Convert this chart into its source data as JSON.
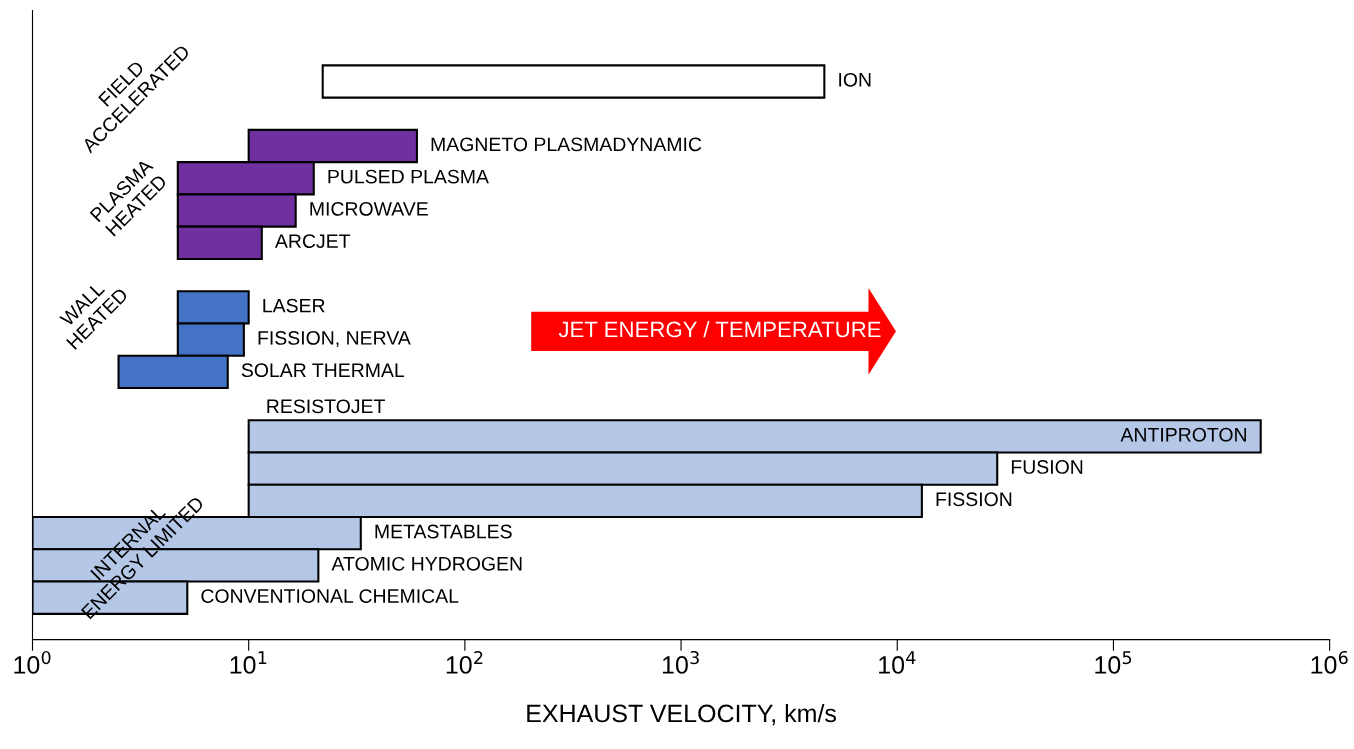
{
  "chart_data": {
    "type": "bar",
    "orientation": "horizontal",
    "log": "x",
    "grid": false,
    "tick_labels": "x",
    "xlabel": "EXHAUST VELOCITY, km/s",
    "categories": [
      "ION",
      null,
      "MAGNETO PLASMADYNAMIC",
      "PULSED PLASMA",
      "MICROWAVE",
      "ARCJET",
      null,
      "LASER",
      "FISSION, NERVA",
      "SOLAR THERMAL",
      null,
      "ANTIPROTON",
      "FUSION",
      "FISSION",
      "METASTABLES",
      "ATOMIC HYDROGEN",
      "CONVENTIONAL CHEMICAL"
    ],
    "base": [
      22,
      null,
      10,
      4.7,
      4.7,
      4.7,
      null,
      4.7,
      4.7,
      2.5,
      null,
      10,
      10,
      10,
      1,
      1,
      1
    ],
    "values": [
      4578,
      null,
      50,
      15.3,
      11.8,
      6.8,
      null,
      5.3,
      4.8,
      5.5,
      null,
      479990,
      28990,
      12990,
      32,
      20,
      4.2
    ],
    "colors": [
      "#ffffff",
      null,
      "#7030a0",
      "#7030a0",
      "#7030a0",
      "#7030a0",
      null,
      "#4472c4",
      "#4472c4",
      "#4472c4",
      null,
      "#b4c7e7",
      "#b4c7e7",
      "#b4c7e7",
      "#b4c7e7",
      "#b4c7e7",
      "#b4c7e7"
    ],
    "xlim": [
      1,
      1000000
    ],
    "xticks": [
      {
        "value": 1,
        "label": "10$^{0}$"
      },
      {
        "value": 10,
        "label": "10$^{1}$"
      },
      {
        "value": 100,
        "label": "10$^{2}$"
      },
      {
        "value": 1000,
        "label": "10$^{3}$"
      },
      {
        "value": 10000,
        "label": "10$^{4}$"
      },
      {
        "value": 100000,
        "label": "10$^{5}$"
      },
      {
        "value": 1000000,
        "label": "10$^{6}$"
      }
    ],
    "annotations": [
      "FIELD\nACCELERATED",
      "PLASMA\nHEATED",
      "WALL\nHEATED",
      "INTERNAL\nENERGY LIMITED",
      {
        "text": "RESISTOJET",
        "x": 12,
        "y": "ANTIPROTON"
      },
      "JET ENERGY / TEMPERATURE"
    ]
  }
}
